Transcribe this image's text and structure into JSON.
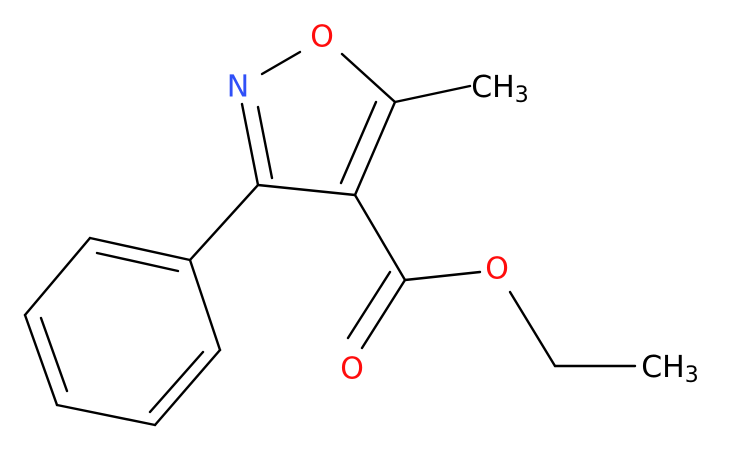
{
  "molecule": {
    "atoms": [
      {
        "text": "O"
      },
      {
        "text": "N"
      },
      {
        "text": "CH",
        "sub": "3"
      },
      {
        "text": "O"
      },
      {
        "text": "O"
      },
      {
        "text": "CH",
        "sub": "3"
      }
    ]
  }
}
